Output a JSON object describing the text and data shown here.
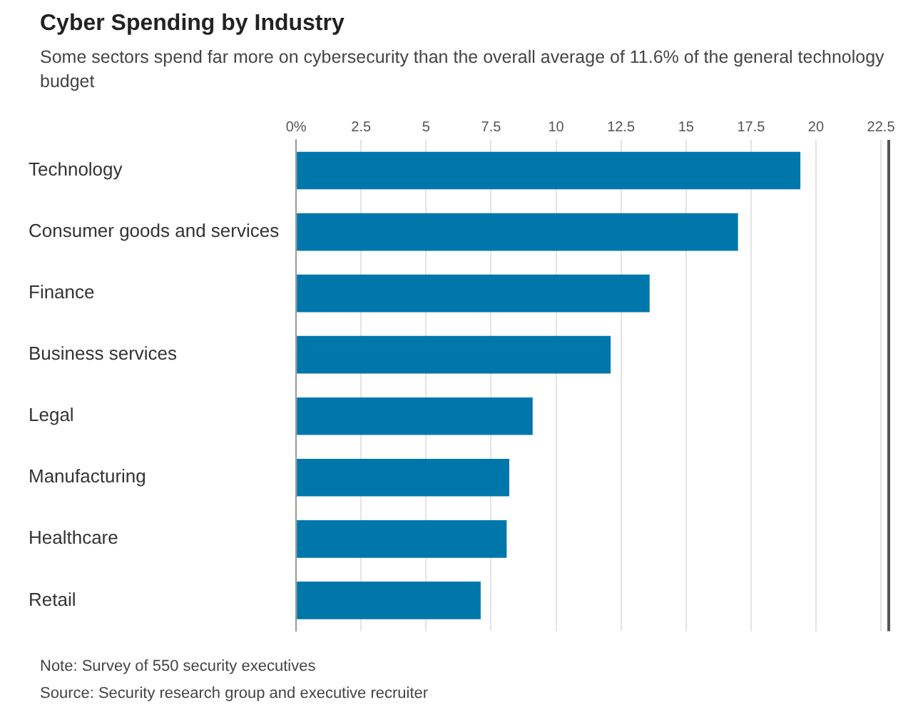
{
  "chart_data": {
    "type": "bar",
    "orientation": "horizontal",
    "title": "Cyber Spending by Industry",
    "subtitle": "Some sectors spend far more on cybersecurity than the overall average of 11.6% of the general technology budget",
    "categories": [
      "Technology",
      "Consumer goods and services",
      "Finance",
      "Business services",
      "Legal",
      "Manufacturing",
      "Healthcare",
      "Retail"
    ],
    "values": [
      19.4,
      17.0,
      13.6,
      12.1,
      9.1,
      8.2,
      8.1,
      7.1
    ],
    "color": "#0077aa",
    "xlim": [
      0,
      22.8
    ],
    "xticks": [
      {
        "value": 0,
        "label": "0%"
      },
      2.5,
      5,
      7.5,
      10,
      12.5,
      15,
      17.5,
      20,
      22.5
    ],
    "grid": "x",
    "legend": false,
    "annotations": [
      "Note: Survey of 550 security executives",
      "Source: Security research group and executive recruiter"
    ]
  }
}
